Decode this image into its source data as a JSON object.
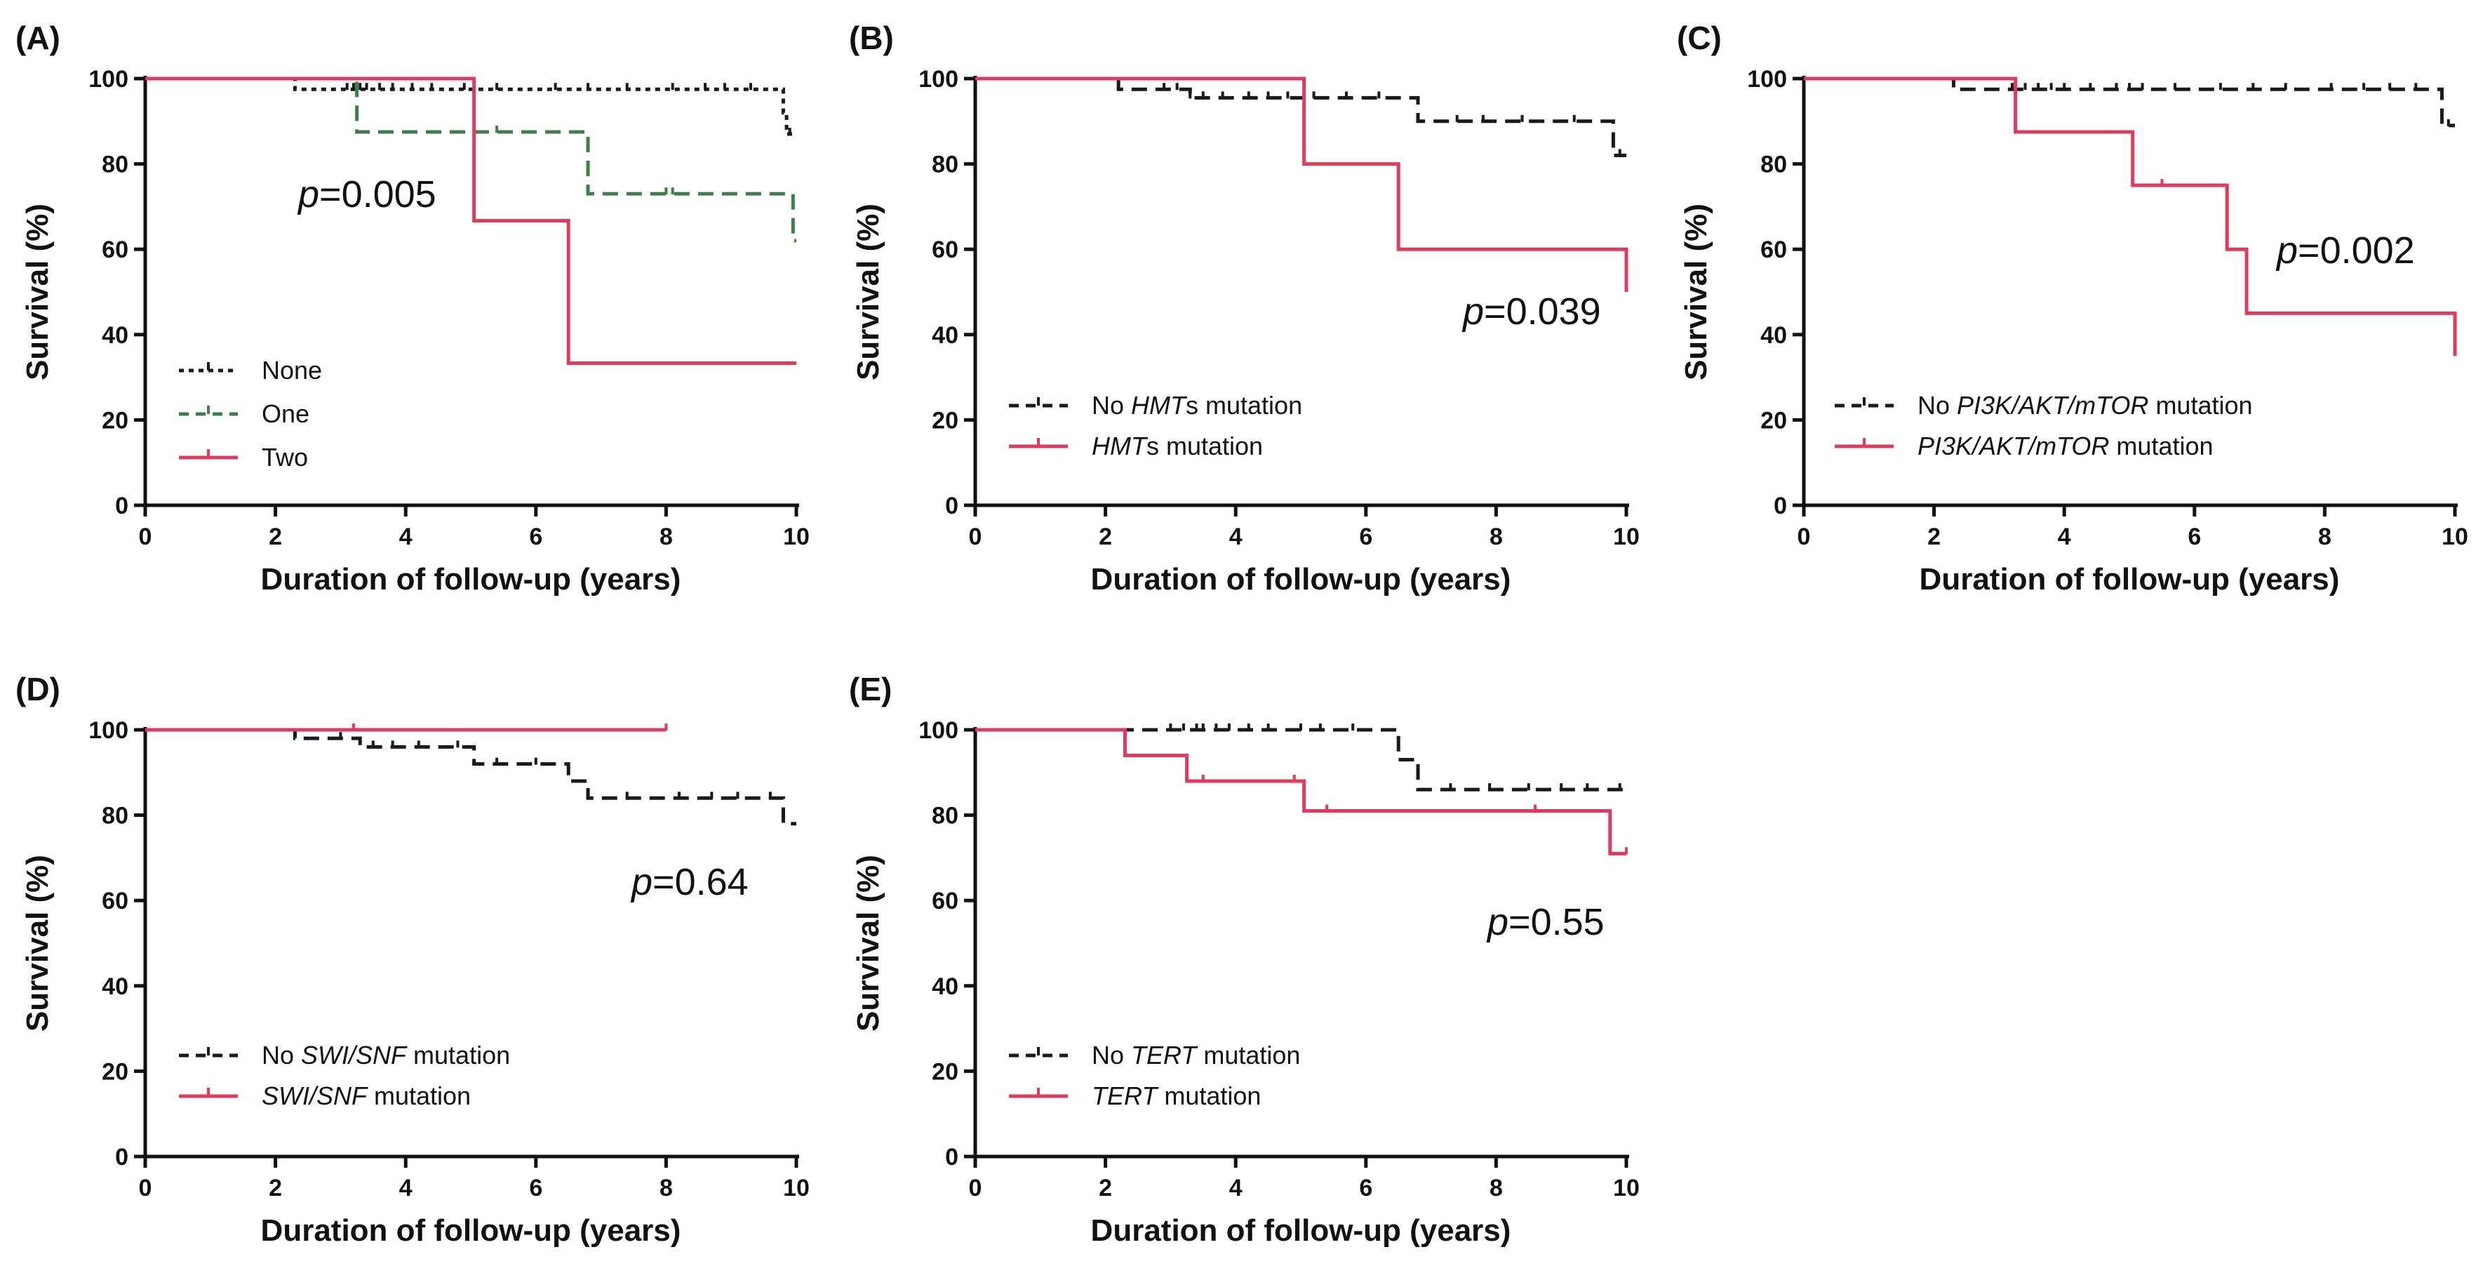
{
  "figure": {
    "colors": {
      "black": "#1a1a1a",
      "green": "#3f7d4b",
      "red": "#e03a5c"
    }
  },
  "chart_data": [
    {
      "id": "A",
      "panel_label": "(A)",
      "type": "line",
      "xlabel": "Duration of follow-up (years)",
      "ylabel": "Survival (%)",
      "xlim": [
        0,
        10
      ],
      "ylim": [
        0,
        100
      ],
      "xticks": [
        "0",
        "2",
        "4",
        "6",
        "8",
        "10"
      ],
      "yticks": [
        "0",
        "20",
        "40",
        "60",
        "80",
        "100"
      ],
      "p_prefix": "p",
      "p_value": "=0.005",
      "series": [
        {
          "name": "None",
          "legend_parts": [
            {
              "t": "None",
              "i": false
            }
          ],
          "color": "#1a1a1a",
          "dash": "dotted",
          "steps": [
            [
              0,
              100
            ],
            [
              2.3,
              97.5
            ],
            [
              9.8,
              92
            ],
            [
              9.85,
              87
            ],
            [
              10,
              87
            ]
          ],
          "censors": [
            3.1,
            3.2,
            3.3,
            3.4,
            3.6,
            3.8,
            4.1,
            4.4,
            4.9,
            5.4,
            6.3,
            6.8,
            7.4,
            8.1,
            8.6,
            8.9,
            9.3,
            9.9
          ]
        },
        {
          "name": "One",
          "legend_parts": [
            {
              "t": "One",
              "i": false
            }
          ],
          "color": "#3f7d4b",
          "dash": "dashed",
          "steps": [
            [
              0,
              100
            ],
            [
              3.25,
              87.5
            ],
            [
              6.8,
              73
            ],
            [
              9.95,
              62
            ],
            [
              10,
              62
            ]
          ],
          "censors": [
            5.4,
            8.0,
            8.1
          ]
        },
        {
          "name": "Two",
          "legend_parts": [
            {
              "t": "Two",
              "i": false
            }
          ],
          "color": "#e03a5c",
          "dash": "solid",
          "steps": [
            [
              0,
              100
            ],
            [
              5.05,
              66.7
            ],
            [
              6.5,
              33.3
            ],
            [
              10,
              33.3
            ]
          ],
          "censors": []
        }
      ]
    },
    {
      "id": "B",
      "panel_label": "(B)",
      "type": "line",
      "xlabel": "Duration of follow-up (years)",
      "ylabel": "Survival (%)",
      "xlim": [
        0,
        10
      ],
      "ylim": [
        0,
        100
      ],
      "xticks": [
        "0",
        "2",
        "4",
        "6",
        "8",
        "10"
      ],
      "yticks": [
        "0",
        "20",
        "40",
        "60",
        "80",
        "100"
      ],
      "p_prefix": "p",
      "p_value": "=0.039",
      "series": [
        {
          "name": "No HMTs mutation",
          "legend_parts": [
            {
              "t": "No ",
              "i": false
            },
            {
              "t": "HMT",
              "i": true
            },
            {
              "t": "s mutation",
              "i": false
            }
          ],
          "color": "#1a1a1a",
          "dash": "dashed",
          "steps": [
            [
              0,
              100
            ],
            [
              2.2,
              97.5
            ],
            [
              3.3,
              95.5
            ],
            [
              6.8,
              90
            ],
            [
              9.8,
              82
            ],
            [
              10,
              82
            ]
          ],
          "censors": [
            2.9,
            3.1,
            3.3,
            3.5,
            3.8,
            4.2,
            4.5,
            4.8,
            5.2,
            5.7,
            6.2,
            7.4,
            7.8,
            8.4,
            9.2,
            9.9
          ]
        },
        {
          "name": "HMTs mutation",
          "legend_parts": [
            {
              "t": "HMT",
              "i": true
            },
            {
              "t": "s mutation",
              "i": false
            }
          ],
          "color": "#e03a5c",
          "dash": "solid",
          "steps": [
            [
              0,
              100
            ],
            [
              5.05,
              80
            ],
            [
              6.5,
              60
            ],
            [
              10,
              50
            ]
          ],
          "censors": []
        }
      ]
    },
    {
      "id": "C",
      "panel_label": "(C)",
      "type": "line",
      "xlabel": "Duration of follow-up (years)",
      "ylabel": "Survival (%)",
      "xlim": [
        0,
        10
      ],
      "ylim": [
        0,
        100
      ],
      "xticks": [
        "0",
        "2",
        "4",
        "6",
        "8",
        "10"
      ],
      "yticks": [
        "0",
        "20",
        "40",
        "60",
        "80",
        "100"
      ],
      "p_prefix": "p",
      "p_value": "=0.002",
      "series": [
        {
          "name": "No PI3K/AKT/mTOR mutation",
          "legend_parts": [
            {
              "t": "No ",
              "i": false
            },
            {
              "t": "PI3K/AKT/mTOR",
              "i": true
            },
            {
              "t": " mutation",
              "i": false
            }
          ],
          "color": "#1a1a1a",
          "dash": "dashed",
          "steps": [
            [
              0,
              100
            ],
            [
              2.3,
              97.5
            ],
            [
              9.8,
              89
            ],
            [
              10,
              89
            ]
          ],
          "censors": [
            3.2,
            3.4,
            3.6,
            3.8,
            4.0,
            4.4,
            4.8,
            5.0,
            5.2,
            5.7,
            6.4,
            6.9,
            7.4,
            8.1,
            8.6,
            9.0,
            9.4,
            9.9
          ]
        },
        {
          "name": "PI3K/AKT/mTOR mutation",
          "legend_parts": [
            {
              "t": "PI3K/AKT/mTOR",
              "i": true
            },
            {
              "t": " mutation",
              "i": false
            }
          ],
          "color": "#e03a5c",
          "dash": "solid",
          "steps": [
            [
              0,
              100
            ],
            [
              3.25,
              87.5
            ],
            [
              5.05,
              75
            ],
            [
              6.5,
              60
            ],
            [
              6.8,
              45
            ],
            [
              10,
              35
            ]
          ],
          "censors": [
            5.5
          ]
        }
      ]
    },
    {
      "id": "D",
      "panel_label": "(D)",
      "type": "line",
      "xlabel": "Duration of follow-up (years)",
      "ylabel": "Survival (%)",
      "xlim": [
        0,
        10
      ],
      "ylim": [
        0,
        100
      ],
      "xticks": [
        "0",
        "2",
        "4",
        "6",
        "8",
        "10"
      ],
      "yticks": [
        "0",
        "20",
        "40",
        "60",
        "80",
        "100"
      ],
      "p_prefix": "p",
      "p_value": "=0.64",
      "series": [
        {
          "name": "No SWI/SNF mutation",
          "legend_parts": [
            {
              "t": "No ",
              "i": false
            },
            {
              "t": "SWI/SNF",
              "i": true
            },
            {
              "t": " mutation",
              "i": false
            }
          ],
          "color": "#1a1a1a",
          "dash": "dashed",
          "steps": [
            [
              0,
              100
            ],
            [
              2.3,
              98
            ],
            [
              3.3,
              96
            ],
            [
              5.05,
              92
            ],
            [
              6.5,
              88
            ],
            [
              6.8,
              84
            ],
            [
              9.8,
              78
            ],
            [
              10,
              78
            ]
          ],
          "censors": [
            3.0,
            3.5,
            3.8,
            4.2,
            4.8,
            5.4,
            6.0,
            7.4,
            8.2,
            8.7,
            9.1,
            9.6
          ]
        },
        {
          "name": "SWI/SNF mutation",
          "legend_parts": [
            {
              "t": "SWI/SNF",
              "i": true
            },
            {
              "t": " mutation",
              "i": false
            }
          ],
          "color": "#e03a5c",
          "dash": "solid",
          "steps": [
            [
              0,
              100
            ],
            [
              8,
              100
            ]
          ],
          "censors": [
            3.2,
            8.0
          ]
        }
      ]
    },
    {
      "id": "E",
      "panel_label": "(E)",
      "type": "line",
      "xlabel": "Duration of follow-up (years)",
      "ylabel": "Survival (%)",
      "xlim": [
        0,
        10
      ],
      "ylim": [
        0,
        100
      ],
      "xticks": [
        "0",
        "2",
        "4",
        "6",
        "8",
        "10"
      ],
      "yticks": [
        "0",
        "20",
        "40",
        "60",
        "80",
        "100"
      ],
      "p_prefix": "p",
      "p_value": "=0.55",
      "series": [
        {
          "name": "No TERT mutation",
          "legend_parts": [
            {
              "t": "No ",
              "i": false
            },
            {
              "t": "TERT",
              "i": true
            },
            {
              "t": " mutation",
              "i": false
            }
          ],
          "color": "#1a1a1a",
          "dash": "dashed",
          "steps": [
            [
              0,
              100
            ],
            [
              6.5,
              93
            ],
            [
              6.8,
              86
            ],
            [
              10,
              86
            ]
          ],
          "censors": [
            3.0,
            3.2,
            3.4,
            3.5,
            3.7,
            3.9,
            4.2,
            4.5,
            5.0,
            5.3,
            5.8,
            7.3,
            7.9,
            8.5,
            9.0,
            9.4,
            9.9
          ]
        },
        {
          "name": "TERT mutation",
          "legend_parts": [
            {
              "t": "TERT",
              "i": true
            },
            {
              "t": " mutation",
              "i": false
            }
          ],
          "color": "#e03a5c",
          "dash": "solid",
          "steps": [
            [
              0,
              100
            ],
            [
              2.3,
              94
            ],
            [
              3.25,
              88
            ],
            [
              5.05,
              81
            ],
            [
              9.75,
              71
            ],
            [
              10,
              71
            ]
          ],
          "censors": [
            3.5,
            4.9,
            5.4,
            8.6,
            10.0
          ]
        }
      ]
    }
  ]
}
